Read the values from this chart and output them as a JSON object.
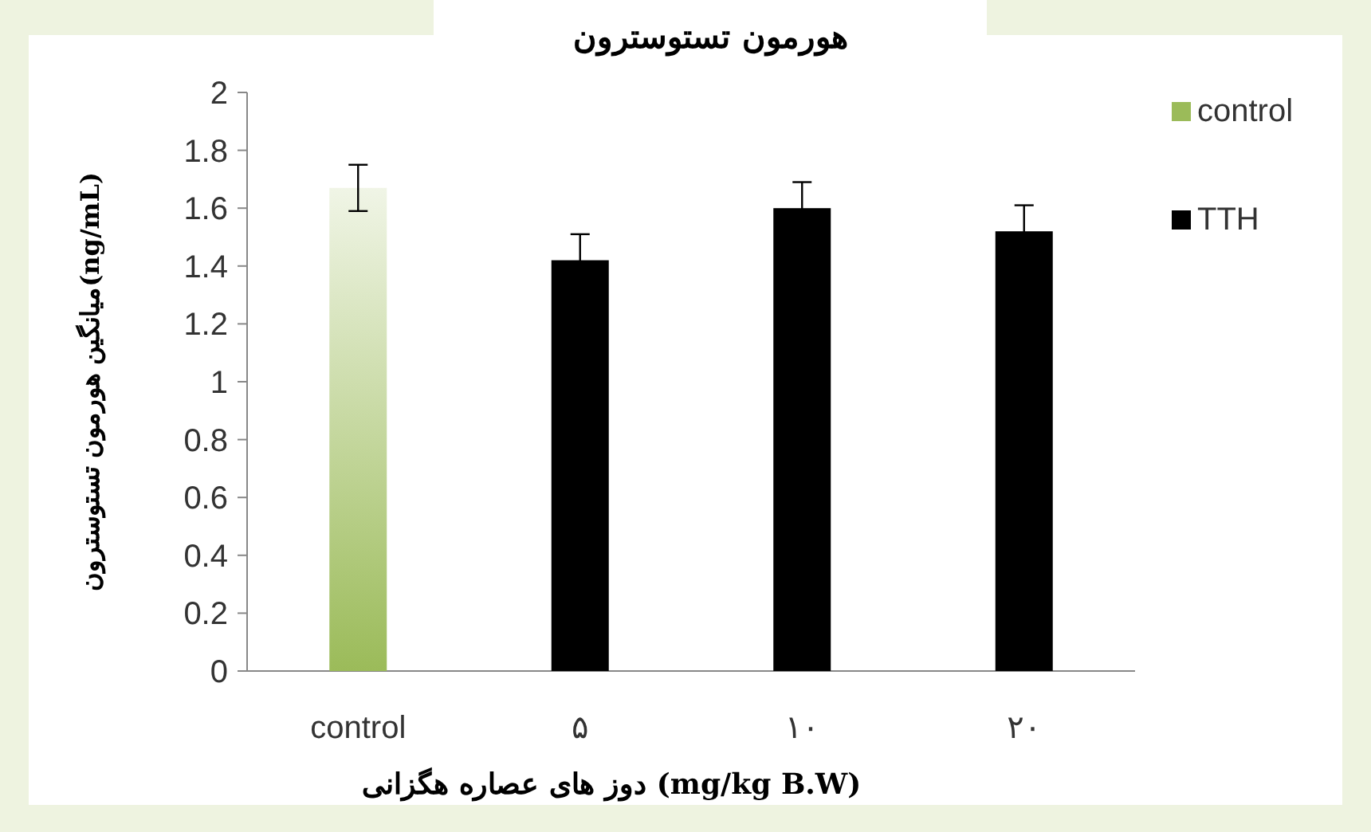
{
  "chart_data": {
    "type": "bar",
    "title": "هورمون تستوسترون",
    "xlabel": "دوز های عصاره هگزانی (mg/kg B.W)",
    "ylabel": "میانگین هورمون تستوسترون(ng/mL)",
    "categories": [
      "control",
      "۵",
      "۱۰",
      "۲۰"
    ],
    "series": [
      {
        "name": "control",
        "color": "#9bbb59",
        "values": [
          1.67,
          null,
          null,
          null
        ],
        "errors": [
          0.08,
          null,
          null,
          null
        ]
      },
      {
        "name": "TTH",
        "color": "#000000",
        "values": [
          null,
          1.42,
          1.6,
          1.52
        ],
        "errors": [
          null,
          0.09,
          0.09,
          0.09
        ]
      }
    ],
    "ylim": [
      0,
      2
    ],
    "yticks": [
      0,
      0.2,
      0.4,
      0.6,
      0.8,
      1,
      1.2,
      1.4,
      1.6,
      1.8,
      2
    ],
    "grid": false,
    "legend": "right"
  }
}
